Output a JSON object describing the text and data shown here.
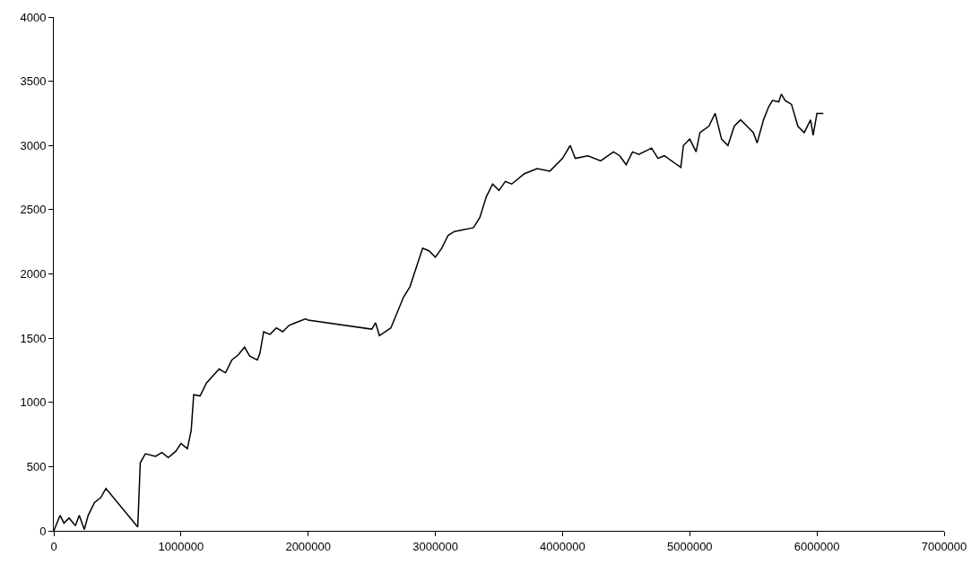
{
  "chart_data": {
    "type": "line",
    "color": "#000000",
    "grid": false,
    "marker": "none",
    "line_style": "solid",
    "x": [
      0,
      50000,
      80000,
      120000,
      170000,
      200000,
      240000,
      270000,
      320000,
      370000,
      410000,
      660000,
      680000,
      720000,
      800000,
      850000,
      900000,
      960000,
      1000000,
      1050000,
      1080000,
      1100000,
      1150000,
      1200000,
      1300000,
      1350000,
      1400000,
      1450000,
      1500000,
      1540000,
      1600000,
      1620000,
      1650000,
      1700000,
      1750000,
      1800000,
      1850000,
      1900000,
      1980000,
      2000000,
      2500000,
      2530000,
      2560000,
      2620000,
      2650000,
      2700000,
      2750000,
      2800000,
      2850000,
      2900000,
      2950000,
      3000000,
      3050000,
      3100000,
      3150000,
      3200000,
      3300000,
      3350000,
      3400000,
      3450000,
      3500000,
      3550000,
      3600000,
      3700000,
      3800000,
      3900000,
      4000000,
      4060000,
      4100000,
      4200000,
      4300000,
      4400000,
      4450000,
      4500000,
      4550000,
      4600000,
      4700000,
      4750000,
      4800000,
      4900000,
      4930000,
      4950000,
      5000000,
      5050000,
      5080000,
      5150000,
      5200000,
      5250000,
      5300000,
      5350000,
      5400000,
      5450000,
      5500000,
      5530000,
      5580000,
      5620000,
      5650000,
      5700000,
      5720000,
      5750000,
      5800000,
      5850000,
      5900000,
      5950000,
      5970000,
      6000000,
      6050000
    ],
    "values": [
      0,
      120,
      60,
      100,
      40,
      120,
      10,
      120,
      220,
      260,
      330,
      30,
      530,
      600,
      580,
      610,
      570,
      620,
      680,
      640,
      780,
      1060,
      1050,
      1150,
      1260,
      1230,
      1330,
      1370,
      1430,
      1360,
      1330,
      1380,
      1550,
      1530,
      1580,
      1550,
      1600,
      1620,
      1650,
      1640,
      1570,
      1620,
      1520,
      1560,
      1580,
      1700,
      1820,
      1900,
      2050,
      2200,
      2180,
      2130,
      2200,
      2300,
      2330,
      2340,
      2360,
      2440,
      2600,
      2700,
      2650,
      2720,
      2700,
      2780,
      2820,
      2800,
      2900,
      3000,
      2900,
      2920,
      2880,
      2950,
      2920,
      2850,
      2950,
      2930,
      2980,
      2900,
      2920,
      2850,
      2830,
      3000,
      3050,
      2950,
      3100,
      3150,
      3250,
      3050,
      3000,
      3150,
      3200,
      3150,
      3100,
      3020,
      3200,
      3300,
      3350,
      3340,
      3400,
      3350,
      3320,
      3150,
      3100,
      3200,
      3080,
      3250,
      3250
    ],
    "xlim": [
      0,
      7000000
    ],
    "xticks": [
      0,
      1000000,
      2000000,
      3000000,
      4000000,
      5000000,
      6000000,
      7000000
    ],
    "ylim": [
      0,
      4000
    ],
    "yticks": [
      0,
      500,
      1000,
      1500,
      2000,
      2500,
      3000,
      3500,
      4000
    ]
  }
}
